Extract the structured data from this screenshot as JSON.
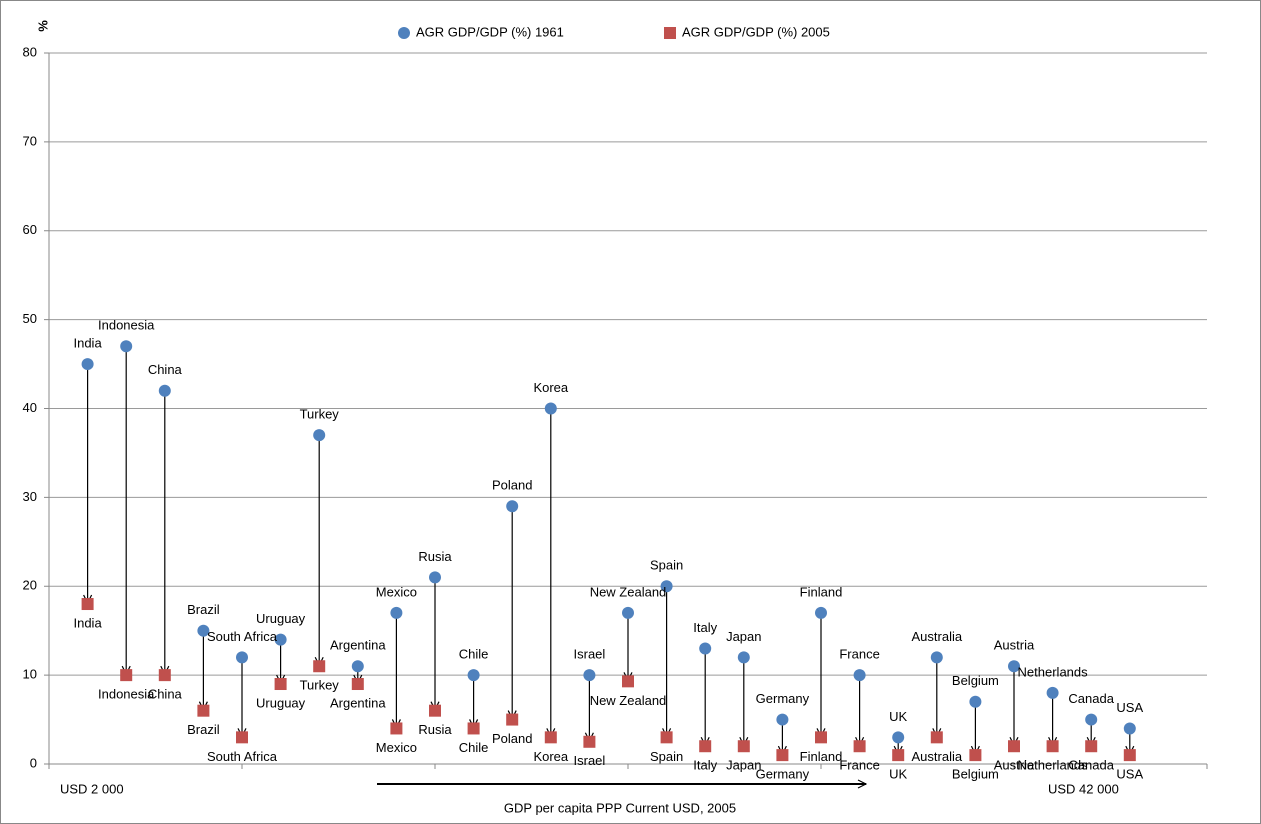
{
  "chart_data": {
    "type": "dumbbell",
    "y_label": "%",
    "x_label": "GDP per capita  PPP Current USD, 2005",
    "annotations": [
      "USD  2 000",
      "USD   42 000"
    ],
    "categories": [
      "India",
      "Indonesia",
      "China",
      "Brazil",
      "South Africa",
      "Uruguay",
      "Turkey",
      "Argentina",
      "Mexico",
      "Rusia",
      "Chile",
      "Poland",
      "Korea",
      "Israel",
      "New Zealand",
      "Spain",
      "Italy",
      "Japan",
      "Germany",
      "Finland",
      "France",
      "UK",
      "Australia",
      "Belgium",
      "Austria",
      "Netherlands",
      "Canada",
      "USA"
    ],
    "series": [
      {
        "name": "AGR  GDP/GDP (%)  1961",
        "color": "#4f81bd",
        "marker": "circle",
        "values": [
          45,
          47,
          42,
          15,
          12,
          14,
          37,
          11,
          17,
          21,
          10,
          29,
          40,
          10,
          17,
          20,
          13,
          12,
          5,
          17,
          10,
          3,
          12,
          7,
          11,
          8,
          5,
          4
        ]
      },
      {
        "name": "AGR GDP/GDP (%) 2005",
        "color": "#c0504d",
        "marker": "square",
        "values": [
          18,
          10,
          10,
          6,
          3,
          9,
          11,
          9,
          4,
          6,
          4,
          5,
          3,
          2.5,
          9.3,
          3,
          2,
          2,
          1,
          3,
          2,
          1,
          3,
          1,
          2,
          2,
          2,
          1
        ]
      }
    ],
    "ylim": [
      0,
      80
    ],
    "yticks": [
      0,
      10,
      20,
      30,
      40,
      50,
      60,
      70,
      80
    ],
    "grid": true
  }
}
